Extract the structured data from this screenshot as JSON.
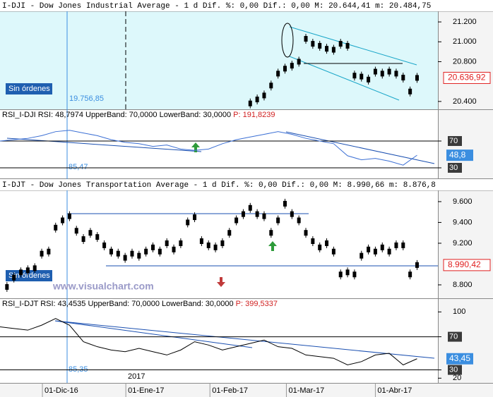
{
  "chart_data": [
    {
      "type": "candle",
      "title": "I-DJI  -  Dow Jones Industrial Average  -   1 d Dif. %: 0,00 Dif.: 0,00 M: 20.644,41 m: 20.484,75",
      "annotations": [
        "Sin órdenes",
        "19.756,85"
      ],
      "color": "#000000",
      "badge_color": "#e02020",
      "last_label": "20.636,92",
      "x": [
        36,
        37,
        38,
        39,
        40,
        41,
        42,
        43,
        44,
        45,
        46,
        47,
        48,
        49,
        50,
        51,
        52,
        53,
        54,
        55,
        56,
        57,
        58,
        59,
        60
      ],
      "values": [
        20380,
        20420,
        20460,
        20560,
        20680,
        20730,
        20760,
        20800,
        21030,
        20980,
        20960,
        20930,
        20920,
        20980,
        20960,
        20660,
        20650,
        20620,
        20700,
        20680,
        20700,
        20680,
        20640,
        20500,
        20636.92
      ],
      "xlim": [
        0,
        63
      ],
      "ylim": [
        20321,
        21307
      ],
      "yticks": [
        {
          "value": 20400,
          "label": "20.400"
        },
        {
          "value": 20800,
          "label": "20.800"
        },
        {
          "value": 21000,
          "label": "21.000"
        },
        {
          "value": 21200,
          "label": "21.200"
        }
      ]
    },
    {
      "type": "line",
      "title": "RSI_I-DJI RSI: 48,7974 UpperBand: 70,0000 LowerBand: 30,0000",
      "period_label": "P: 191,8239",
      "annotations": [
        "85,47"
      ],
      "color": "#3b6fd4",
      "badge_color": "#3b8ee0",
      "last_label": "48,8",
      "x": [
        0,
        2,
        4,
        6,
        8,
        10,
        12,
        14,
        16,
        18,
        20,
        22,
        24,
        26,
        28,
        30,
        32,
        34,
        36,
        38,
        40,
        42,
        44,
        46,
        48,
        50,
        52,
        54,
        56,
        58,
        60
      ],
      "values": [
        70,
        72,
        74,
        78,
        84,
        86,
        82,
        78,
        72,
        68,
        66,
        62,
        64,
        58,
        56,
        58,
        66,
        72,
        76,
        80,
        84,
        80,
        74,
        70,
        66,
        48,
        42,
        44,
        40,
        34,
        48.8
      ],
      "hlines": [
        70,
        30
      ],
      "xlim": [
        0,
        63
      ],
      "ylim": [
        14.2,
        116.3
      ],
      "yticks": [
        30,
        70
      ]
    },
    {
      "type": "candle",
      "title": "I-DJT - Dow Jones Transportation Average -  1 d Dif. %: 0,00 Dif.: 0,00 M: 8.990,66 m: 8.876,8",
      "annotations": [
        "Sin órdenes",
        "www.visualchart.com"
      ],
      "color": "#000000",
      "badge_color": "#e02020",
      "last_label": "8.990,42",
      "x": [
        1,
        2,
        3,
        4,
        5,
        6,
        7,
        8,
        9,
        10,
        11,
        12,
        13,
        14,
        15,
        16,
        17,
        18,
        19,
        20,
        21,
        22,
        23,
        24,
        25,
        26,
        27,
        28,
        29,
        30,
        31,
        32,
        33,
        34,
        35,
        36,
        37,
        38,
        39,
        40,
        41,
        42,
        43,
        44,
        45,
        46,
        47,
        48,
        49,
        50,
        51,
        52,
        53,
        54,
        55,
        56,
        57,
        58,
        59,
        60
      ],
      "values": [
        8780,
        8870,
        8920,
        8940,
        8960,
        9100,
        9120,
        9350,
        9420,
        9460,
        9320,
        9240,
        9300,
        9260,
        9180,
        9120,
        9100,
        9060,
        9100,
        9080,
        9120,
        9160,
        9120,
        9200,
        9140,
        9200,
        9400,
        9450,
        9220,
        9180,
        9160,
        9200,
        9300,
        9420,
        9480,
        9540,
        9480,
        9460,
        9300,
        9420,
        9580,
        9480,
        9420,
        9300,
        9220,
        9160,
        9200,
        9120,
        8900,
        8920,
        8900,
        9080,
        9140,
        9120,
        9160,
        9120,
        9180,
        9180,
        8900,
        8990.42
      ],
      "xlim": [
        0,
        63
      ],
      "ylim": [
        8671,
        9708
      ],
      "yticks": [
        {
          "value": 8800,
          "label": "8.800"
        },
        {
          "value": 9200,
          "label": "9.200"
        },
        {
          "value": 9400,
          "label": "9.400"
        },
        {
          "value": 9600,
          "label": "9.600"
        }
      ]
    },
    {
      "type": "line",
      "title": "RSI_I-DJT RSI: 43,4535 UpperBand: 70,0000 LowerBand: 30,0000",
      "period_label": "P: 399,5337",
      "annotations": [
        "85,35",
        "2017"
      ],
      "color": "#000000",
      "badge_color": "#3b8ee0",
      "last_label": "43,45",
      "x": [
        0,
        2,
        4,
        6,
        8,
        10,
        12,
        14,
        16,
        18,
        20,
        22,
        24,
        26,
        28,
        30,
        32,
        34,
        36,
        38,
        40,
        42,
        44,
        46,
        48,
        50,
        52,
        54,
        56,
        58,
        60
      ],
      "values": [
        82,
        80,
        78,
        84,
        92,
        84,
        64,
        58,
        54,
        52,
        56,
        52,
        48,
        54,
        64,
        60,
        54,
        58,
        62,
        66,
        58,
        56,
        48,
        46,
        44,
        36,
        40,
        48,
        50,
        36,
        43.45
      ],
      "hlines": [
        70,
        30
      ],
      "xlim": [
        0,
        63
      ],
      "ylim": [
        14.3,
        115.6
      ],
      "yticks": [
        20,
        30,
        70,
        100
      ],
      "xticks": [
        {
          "value": 6.1,
          "label": "01-Dic-16"
        },
        {
          "value": 18.1,
          "label": "01-Ene-17"
        },
        {
          "value": 30.2,
          "label": "01-Feb-17"
        },
        {
          "value": 41.2,
          "label": "01-Mar-17"
        },
        {
          "value": 54.0,
          "label": "01-Abr-17"
        }
      ]
    }
  ]
}
